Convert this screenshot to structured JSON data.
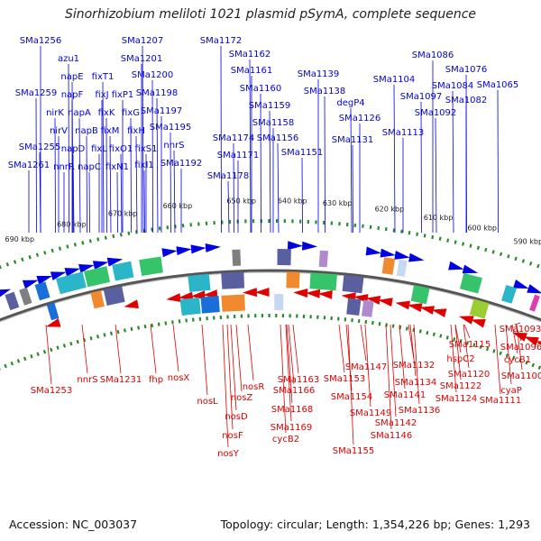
{
  "title": "Sinorhizobium meliloti 1021 plasmid pSymA, complete sequence",
  "footer": {
    "accession": "Accession: NC_003037",
    "summary": "Topology: circular; Length: 1,354,226 bp; Genes: 1,293"
  },
  "colors": {
    "forward": "#0000e0",
    "reverse": "#e00000",
    "backbone": "#888888",
    "ticks": "#2a8a2a"
  },
  "ticks": [
    "690 kbp",
    "680 kbp",
    "670 kbp",
    "660 kbp",
    "650 kbp",
    "640 kbp",
    "630 kbp",
    "620 kbp",
    "610 kbp",
    "600 kbp",
    "590 kbp"
  ],
  "forward_labels": [
    "SMa1256",
    "SMa1259",
    "SMa1255",
    "SMa1261",
    "azu1",
    "napE",
    "napF",
    "nirK",
    "napA",
    "nirV",
    "napB",
    "napD",
    "nnrR",
    "napC",
    "fixT1",
    "fixJ",
    "fixK",
    "fixM",
    "fixL",
    "fixN1",
    "fixO1",
    "fixP1",
    "fixG",
    "fixH",
    "fixS1",
    "fixI1",
    "SMa1207",
    "SMa1201",
    "SMa1200",
    "SMa1198",
    "SMa1197",
    "SMa1195",
    "nnrS",
    "SMa1192",
    "SMa1172",
    "SMa1162",
    "SMa1161",
    "SMa1160",
    "SMa1159",
    "SMa1158",
    "SMa1174",
    "SMa1156",
    "SMa1171",
    "SMa1151",
    "SMa1178",
    "SMa1139",
    "SMa1138",
    "degP4",
    "SMa1126",
    "SMa1131",
    "SMa1104",
    "SMa1113",
    "SMa1097",
    "SMa1092",
    "SMa1086",
    "SMa1076",
    "SMa1084",
    "SMa1082",
    "SMa1065"
  ],
  "reverse_labels": [
    "SMa1253",
    "nnrS",
    "SMa1231",
    "fhp",
    "nosX",
    "nosL",
    "nosR",
    "nosZ",
    "nosD",
    "nosF",
    "nosY",
    "SMa1163",
    "SMa1166",
    "SMa1168",
    "SMa1169",
    "cycB2",
    "SMa1147",
    "SMa1153",
    "SMa1154",
    "SMa1149",
    "SMa1155",
    "SMa1132",
    "SMa1134",
    "SMa1141",
    "SMa1136",
    "SMa1142",
    "SMa1146",
    "hspC2",
    "SMa1120",
    "SMa1122",
    "SMa1124",
    "SMa1115",
    "SMa1111",
    "SMa1093",
    "SMa1096",
    "cycB1",
    "SMa1100",
    "cyaP"
  ]
}
